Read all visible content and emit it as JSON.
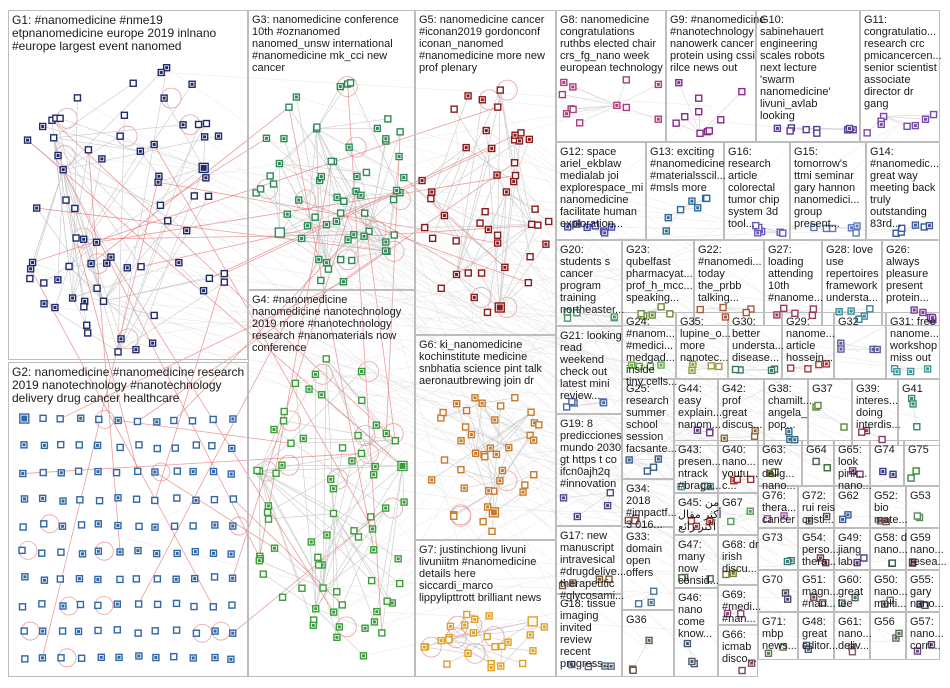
{
  "groups": [
    {
      "id": "G1",
      "lines": [
        "G1: #nanomedicine #nme19",
        "etpnanomedicine europe 2019 inlnano",
        "#europe largest event nanomed"
      ],
      "color": "#1f2a6b",
      "n": 70,
      "shape": "square"
    },
    {
      "id": "G2",
      "lines": [
        "G2: nanomedicine #nanomedicine research",
        "2019 nanotechnology #nanotechnology",
        "delivery drug cancer healthcare"
      ],
      "color": "#2f67a8",
      "n": 120,
      "shape": "square"
    },
    {
      "id": "G3",
      "lines": [
        "G3: nanomedicine conference",
        "10th #oznanomed",
        "nanomed_unsw international",
        "#nanomedicine mk_cci new",
        "cancer"
      ],
      "color": "#2e8b57",
      "n": 60,
      "shape": "square"
    },
    {
      "id": "G4",
      "lines": [
        "G4: #nanomedicine",
        "nanomedicine nanotechnology",
        "2019 more #nanotechnology",
        "research #nanomaterials now",
        "conference"
      ],
      "color": "#3a9d3a",
      "n": 70,
      "shape": "square"
    },
    {
      "id": "G5",
      "lines": [
        "G5: nanomedicine cancer",
        "#iconan2019 gordonconf",
        "iconan_nanomed",
        "#nanomedicine more new",
        "prof plenary"
      ],
      "color": "#8b1a1a",
      "n": 45,
      "shape": "square"
    },
    {
      "id": "G6",
      "lines": [
        "G6: ki_nanomedicine",
        "kochinstitute medicine",
        "snbhatia science pint talk",
        "aeronautbrewing join dr"
      ],
      "color": "#c87a2a",
      "n": 40,
      "shape": "square"
    },
    {
      "id": "G7",
      "lines": [
        "G7: justinchiong livuni",
        "livuniitm #nanomedicine",
        "details here",
        "siccardi_marco",
        "lippylipttrott brilliant news"
      ],
      "color": "#e0a020",
      "n": 25,
      "shape": "square"
    },
    {
      "id": "G8",
      "lines": [
        "G8: nanomedicine",
        "congratulations",
        "ruthbs elected chair",
        "crs_fg_nano week",
        "european technology"
      ],
      "color": "#b03a7a",
      "n": 12,
      "shape": "square"
    },
    {
      "id": "G9",
      "lines": [
        "G9: #nanomedicine",
        "#nanotechnology",
        "nanowerk cancer",
        "protein using cssi",
        "rilce news out"
      ],
      "color": "#8a2a8a",
      "n": 10,
      "shape": "square"
    },
    {
      "id": "G10",
      "lines": [
        "G10:",
        "sabinehauert",
        "engineering",
        "scales robots",
        "next lecture",
        "'swarm",
        "nanomedicine'",
        "livuni_avlab",
        "looking"
      ],
      "color": "#5a3a9a",
      "n": 9,
      "shape": "square"
    },
    {
      "id": "G11",
      "lines": [
        "G11:",
        "congratulatio...",
        "research crc",
        "pmicancercen...",
        "senior scientist",
        "associate",
        "director dr",
        "gang"
      ],
      "color": "#7a4aaa",
      "n": 8,
      "shape": "square"
    },
    {
      "id": "G12",
      "lines": [
        "G12: space",
        "ariel_ekblaw",
        "medialab joi",
        "explorespace_mi",
        "nanomedicine",
        "facilitate human",
        "exploration..."
      ],
      "color": "#4a4aaa",
      "n": 7,
      "shape": "square"
    },
    {
      "id": "G13",
      "lines": [
        "G13: exciting",
        "#nanomedicine",
        "#materialsscil...",
        "#msls more"
      ],
      "color": "#2a6a9a",
      "n": 7,
      "shape": "square"
    },
    {
      "id": "G16",
      "lines": [
        "G16:",
        "research",
        "article",
        "colorectal",
        "tumor chip",
        "system 3d",
        "tool..."
      ],
      "color": "#6a5aba",
      "n": 6,
      "shape": "square"
    },
    {
      "id": "G15",
      "lines": [
        "G15:",
        "tomorrow's",
        "ttmi seminar",
        "gary hannon",
        "nanomedici...",
        "group",
        "present..."
      ],
      "color": "#5a7aba",
      "n": 6,
      "shape": "square"
    },
    {
      "id": "G14",
      "lines": [
        "G14:",
        "#nanomedic...",
        "great way",
        "meeting back",
        "truly",
        "outstanding",
        "83rd..."
      ],
      "color": "#3a5a9a",
      "n": 6,
      "shape": "square"
    },
    {
      "id": "G20",
      "lines": [
        "G20:",
        "students s",
        "cancer",
        "program",
        "training",
        "northeaster..."
      ],
      "color": "#4a9a6a",
      "n": 5,
      "shape": "square"
    },
    {
      "id": "G23",
      "lines": [
        "G23:",
        "qubelfast",
        "pharmacyat...",
        "prof_h_mcc...",
        "speaking..."
      ],
      "color": "#6a8a3a",
      "n": 5,
      "shape": "square"
    },
    {
      "id": "G22",
      "lines": [
        "G22:",
        "#nanomedi...",
        "today",
        "the_prbb",
        "talking..."
      ],
      "color": "#aa5a3a",
      "n": 5,
      "shape": "square"
    },
    {
      "id": "G27",
      "lines": [
        "G27:",
        "loading",
        "attending",
        "10th",
        "#nanome..."
      ],
      "color": "#9a3a5a",
      "n": 5,
      "shape": "square"
    },
    {
      "id": "G28",
      "lines": [
        "G28: love",
        "use",
        "repertoires",
        "framework",
        "understa..."
      ],
      "color": "#3a8a9a",
      "n": 5,
      "shape": "square"
    },
    {
      "id": "G26",
      "lines": [
        "G26:",
        "always",
        "pleasure",
        "present",
        "protein..."
      ],
      "color": "#7a3a9a",
      "n": 5,
      "shape": "square"
    },
    {
      "id": "G21",
      "lines": [
        "G21: looking",
        "read",
        "weekend",
        "check out",
        "latest mini",
        "review..."
      ],
      "color": "#4a6aaa",
      "n": 5,
      "shape": "square"
    },
    {
      "id": "G24",
      "lines": [
        "G24:",
        "#nanom...",
        "#medici...",
        "medgad...",
        "inside",
        "tiny cells..."
      ],
      "color": "#6aaa4a",
      "n": 4,
      "shape": "square"
    },
    {
      "id": "G35",
      "lines": [
        "G35:",
        "lupine_o...",
        "more",
        "nanotec..."
      ],
      "color": "#9a9a3a",
      "n": 4,
      "shape": "square"
    },
    {
      "id": "G30",
      "lines": [
        "G30:",
        "better",
        "understa...",
        "disease..."
      ],
      "color": "#3a7a5a",
      "n": 4,
      "shape": "square"
    },
    {
      "id": "G29",
      "lines": [
        "G29:",
        "nanome...",
        "article",
        "hossein..."
      ],
      "color": "#aa3a3a",
      "n": 4,
      "shape": "square"
    },
    {
      "id": "G32",
      "lines": [
        "G32"
      ],
      "color": "#5a5a9a",
      "n": 4,
      "shape": "square"
    },
    {
      "id": "G31",
      "lines": [
        "G31: free",
        "nanome...",
        "workshop",
        "miss out"
      ],
      "color": "#3a9a9a",
      "n": 4,
      "shape": "square"
    },
    {
      "id": "G25",
      "lines": [
        "G25:",
        "research",
        "summer",
        "school",
        "session",
        "facsante..."
      ],
      "color": "#3a5a8a",
      "n": 4,
      "shape": "square"
    },
    {
      "id": "G44",
      "lines": [
        "G44:",
        "easy",
        "explain...",
        "nanom..."
      ],
      "color": "#6a3a8a",
      "n": 3,
      "shape": "square"
    },
    {
      "id": "G42",
      "lines": [
        "G42:",
        "prof",
        "great",
        "discus..."
      ],
      "color": "#8a6a3a",
      "n": 3,
      "shape": "square"
    },
    {
      "id": "G38",
      "lines": [
        "G38:",
        "chamilt...",
        "angela_",
        "pop..."
      ],
      "color": "#3a6a8a",
      "n": 3,
      "shape": "square"
    },
    {
      "id": "G37",
      "lines": [
        "G37"
      ],
      "color": "#5a8a3a",
      "n": 3,
      "shape": "square"
    },
    {
      "id": "G39",
      "lines": [
        "G39:",
        "interes...",
        "doing",
        "interdis..."
      ],
      "color": "#8a3a6a",
      "n": 3,
      "shape": "square"
    },
    {
      "id": "G41",
      "lines": [
        "G41"
      ],
      "color": "#3a8a6a",
      "n": 3,
      "shape": "square"
    },
    {
      "id": "G19",
      "lines": [
        "G19: 8",
        "predicciones",
        "mundo 2030",
        "gt https t co",
        "ifcn0ajh2q",
        "#innovation"
      ],
      "color": "#4a4a8a",
      "n": 4,
      "shape": "square"
    },
    {
      "id": "G34",
      "lines": [
        "G34:",
        "2018",
        "#impactf...",
        "3 016..."
      ],
      "color": "#8a4a4a",
      "n": 3,
      "shape": "square"
    },
    {
      "id": "G43",
      "lines": [
        "G43:",
        "presen...",
        "ntrack",
        "#braga..."
      ],
      "color": "#4a8a8a",
      "n": 3,
      "shape": "square"
    },
    {
      "id": "G40",
      "lines": [
        "G40:",
        "nano...",
        "youtu...",
        "c..."
      ],
      "color": "#aa2a2a",
      "n": 3,
      "shape": "square"
    },
    {
      "id": "G63",
      "lines": [
        "G63:",
        "new",
        "delig...",
        "nano..."
      ],
      "color": "#6a6a3a",
      "n": 2,
      "shape": "square"
    },
    {
      "id": "G64",
      "lines": [
        "G64"
      ],
      "color": "#3a6a3a",
      "n": 2,
      "shape": "square"
    },
    {
      "id": "G65",
      "lines": [
        "G65:",
        "look",
        "pink...",
        "nano..."
      ],
      "color": "#8a3a8a",
      "n": 2,
      "shape": "square"
    },
    {
      "id": "G74",
      "lines": [
        "G74"
      ],
      "color": "#3a3a8a",
      "n": 2,
      "shape": "square"
    },
    {
      "id": "G75",
      "lines": [
        "G75"
      ],
      "color": "#3a8a3a",
      "n": 2,
      "shape": "square"
    },
    {
      "id": "G17",
      "lines": [
        "G17: new",
        "manuscript",
        "intravesical",
        "#drugdelive...",
        "therapeutic",
        "#glycosami..."
      ],
      "color": "#7a5a3a",
      "n": 4,
      "shape": "square"
    },
    {
      "id": "G45",
      "lines": [
        "G45: من",
        "أكثر مقال",
        "أكثر رائع"
      ],
      "color": "#9a3a3a",
      "n": 3,
      "shape": "square"
    },
    {
      "id": "G67",
      "lines": [
        "G67"
      ],
      "color": "#5a9a5a",
      "n": 2,
      "shape": "square"
    },
    {
      "id": "G76",
      "lines": [
        "G76:",
        "thera...",
        "cancer"
      ],
      "color": "#9a5a9a",
      "n": 2,
      "shape": "square"
    },
    {
      "id": "G72",
      "lines": [
        "G72:",
        "rui reis",
        "cristi..."
      ],
      "color": "#5a5a5a",
      "n": 2,
      "shape": "square"
    },
    {
      "id": "G62",
      "lines": [
        "G62"
      ],
      "color": "#3a5a9a",
      "n": 2,
      "shape": "square"
    },
    {
      "id": "G52",
      "lines": [
        "G52:",
        "bio",
        "mate..."
      ],
      "color": "#8a5a5a",
      "n": 2,
      "shape": "square"
    },
    {
      "id": "G53",
      "lines": [
        "G53"
      ],
      "color": "#5a8a5a",
      "n": 2,
      "shape": "square"
    },
    {
      "id": "G33",
      "lines": [
        "G33:",
        "domain",
        "open",
        "offers"
      ],
      "color": "#4a7a9a",
      "n": 3,
      "shape": "square"
    },
    {
      "id": "G68",
      "lines": [
        "G68: dr",
        "irish",
        "discu..."
      ],
      "color": "#7a7a3a",
      "n": 2,
      "shape": "square"
    },
    {
      "id": "G73",
      "lines": [
        "G73"
      ],
      "color": "#3a7a7a",
      "n": 2,
      "shape": "square"
    },
    {
      "id": "G54",
      "lines": [
        "G54:",
        "perso...",
        "thera..."
      ],
      "color": "#7a3a5a",
      "n": 2,
      "shape": "square"
    },
    {
      "id": "G49",
      "lines": [
        "G49:",
        "jiang",
        "lab..."
      ],
      "color": "#5a3a7a",
      "n": 2,
      "shape": "square"
    },
    {
      "id": "G58",
      "lines": [
        "G58: d",
        "nano..."
      ],
      "color": "#3a5a5a",
      "n": 2,
      "shape": "square"
    },
    {
      "id": "G59",
      "lines": [
        "G59",
        "nano...",
        "resea..."
      ],
      "color": "#6a3a3a",
      "n": 2,
      "shape": "square"
    },
    {
      "id": "G47",
      "lines": [
        "G47:",
        "many",
        "now",
        "consid..."
      ],
      "color": "#4a6a4a",
      "n": 3,
      "shape": "square"
    },
    {
      "id": "G69",
      "lines": [
        "G69:",
        "#medi...",
        "#nan..."
      ],
      "color": "#8a4a7a",
      "n": 2,
      "shape": "square"
    },
    {
      "id": "G70",
      "lines": [
        "G70"
      ],
      "color": "#4a4a6a",
      "n": 2,
      "shape": "square"
    },
    {
      "id": "G51",
      "lines": [
        "G51:",
        "magn...",
        "#nan..."
      ],
      "color": "#6a4a4a",
      "n": 2,
      "shape": "square"
    },
    {
      "id": "G60",
      "lines": [
        "G60:",
        "great",
        "lee"
      ],
      "color": "#4a6a6a",
      "n": 2,
      "shape": "square"
    },
    {
      "id": "G50",
      "lines": [
        "G50:",
        "nano...",
        "multi..."
      ],
      "color": "#6a6a6a",
      "n": 2,
      "shape": "square"
    },
    {
      "id": "G55",
      "lines": [
        "G55:",
        "gary",
        "nano..."
      ],
      "color": "#5a4a6a",
      "n": 2,
      "shape": "square"
    },
    {
      "id": "G18",
      "lines": [
        "G18: tissue",
        "imaging",
        "invited",
        "review",
        "recent",
        "progress..."
      ],
      "color": "#5a6a8a",
      "n": 4,
      "shape": "square"
    },
    {
      "id": "G36",
      "lines": [
        "G36"
      ],
      "color": "#6a5a4a",
      "n": 3,
      "shape": "square"
    },
    {
      "id": "G46",
      "lines": [
        "G46:",
        "nano",
        "come",
        "know..."
      ],
      "color": "#4a5a6a",
      "n": 3,
      "shape": "square"
    },
    {
      "id": "G66",
      "lines": [
        "G66:",
        "icmab",
        "disco..."
      ],
      "color": "#7a4a5a",
      "n": 2,
      "shape": "square"
    },
    {
      "id": "G71",
      "lines": [
        "G71:",
        "mbp",
        "news..."
      ],
      "color": "#5a7a4a",
      "n": 2,
      "shape": "square"
    },
    {
      "id": "G48",
      "lines": [
        "G48:",
        "great",
        "editor..."
      ],
      "color": "#4a5a7a",
      "n": 2,
      "shape": "square"
    },
    {
      "id": "G61",
      "lines": [
        "G61:",
        "nano...",
        "deliv..."
      ],
      "color": "#7a5a6a",
      "n": 2,
      "shape": "square"
    },
    {
      "id": "G56",
      "lines": [
        "G56"
      ],
      "color": "#5a6a5a",
      "n": 2,
      "shape": "square"
    },
    {
      "id": "G57",
      "lines": [
        "G57:",
        "nano...",
        "corri..."
      ],
      "color": "#6a4a7a",
      "n": 2,
      "shape": "square"
    }
  ]
}
